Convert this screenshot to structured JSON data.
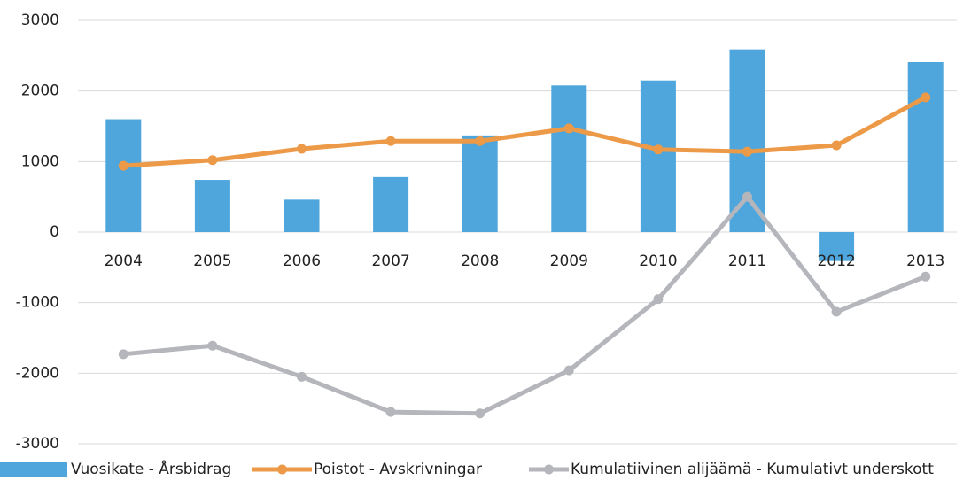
{
  "chart_data": {
    "type": "combo",
    "categories": [
      "2004",
      "2005",
      "2006",
      "2007",
      "2008",
      "2009",
      "2010",
      "2011",
      "2012",
      "2013"
    ],
    "series": [
      {
        "name": "Vuosikate - Årsbidrag",
        "type": "bar",
        "color": "#4ea6dc",
        "values": [
          1600,
          740,
          460,
          780,
          1370,
          2080,
          2150,
          2590,
          -410,
          2410
        ]
      },
      {
        "name": "Poistot - Avskrivningar",
        "type": "line",
        "color": "#ed9a48",
        "values": [
          940,
          1020,
          1180,
          1290,
          1290,
          1470,
          1170,
          1140,
          1230,
          1910
        ]
      },
      {
        "name": "Kumulatiivinen alijäämä - Kumulativt underskott",
        "type": "line",
        "color": "#b4b6bc",
        "values": [
          -1730,
          -1610,
          -2050,
          -2550,
          -2570,
          -1960,
          -950,
          500,
          -1130,
          -630
        ]
      }
    ],
    "ylim": [
      -3000,
      3000
    ],
    "yticks": [
      -3000,
      -2000,
      -1000,
      0,
      1000,
      2000,
      3000
    ],
    "grid": true,
    "legend": "bottom"
  }
}
